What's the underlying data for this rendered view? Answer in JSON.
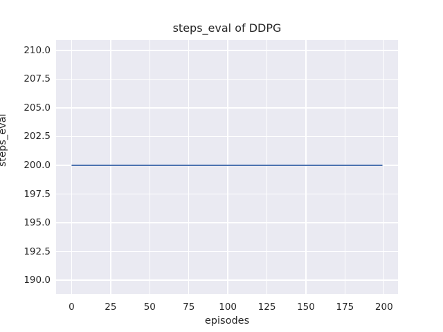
{
  "chart_data": {
    "type": "line",
    "title": "steps_eval of DDPG",
    "xlabel": "episodes",
    "ylabel": "steps_eval",
    "xlim": [
      -9.95,
      208.95
    ],
    "ylim": [
      188.8,
      210.9
    ],
    "xticks": [
      0,
      25,
      50,
      75,
      100,
      125,
      150,
      175,
      200
    ],
    "xtick_labels": [
      "0",
      "25",
      "50",
      "75",
      "100",
      "125",
      "150",
      "175",
      "200"
    ],
    "yticks": [
      190,
      192.5,
      195,
      197.5,
      200,
      202.5,
      205,
      207.5,
      210
    ],
    "ytick_labels": [
      "190.0",
      "192.5",
      "195.0",
      "197.5",
      "200.0",
      "202.5",
      "205.0",
      "207.5",
      "210.0"
    ],
    "grid": true,
    "legend": "none",
    "series": [
      {
        "name": "DDPG",
        "x": [
          0,
          199
        ],
        "y": [
          200,
          200
        ],
        "color": "#4c72b0",
        "line_width": 2
      }
    ],
    "colors": {
      "figure_background": "#ffffff",
      "plot_background": "#eaeaf2",
      "grid": "#ffffff",
      "text": "#262626"
    }
  }
}
